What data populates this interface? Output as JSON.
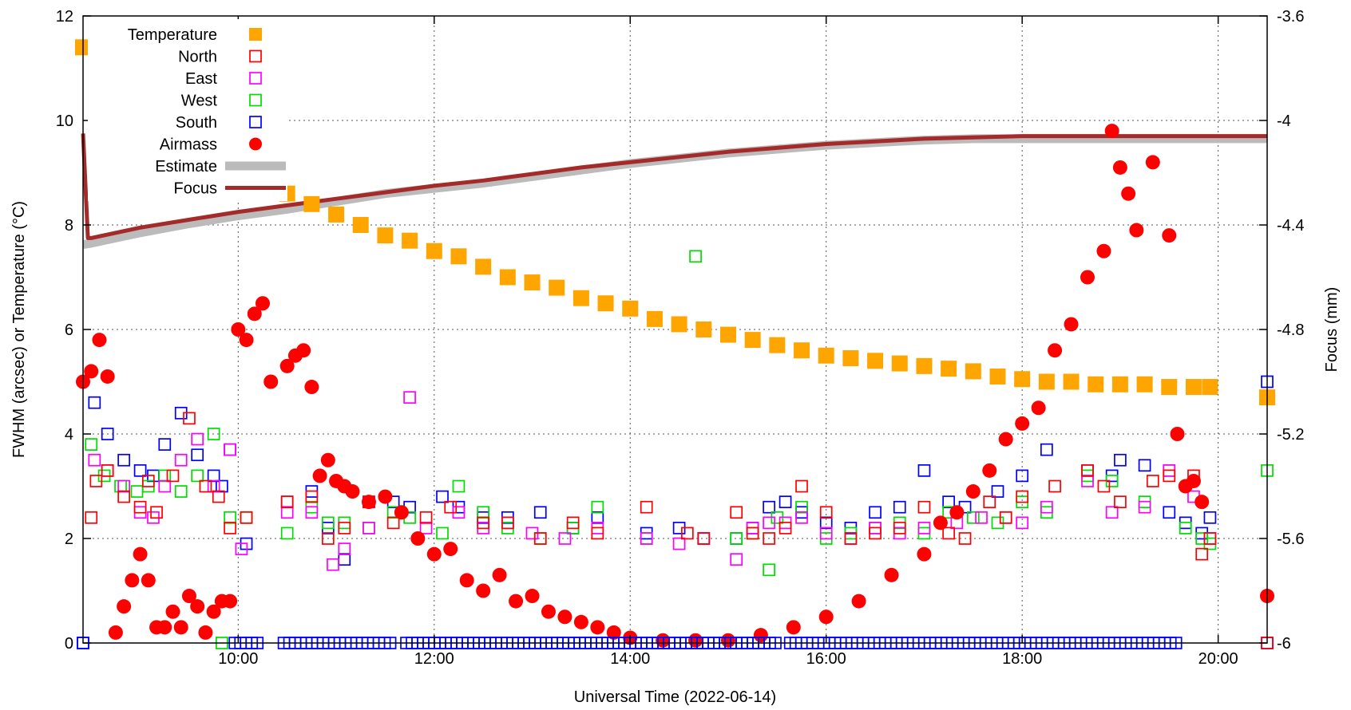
{
  "chart_data": {
    "type": "scatter",
    "xlabel": "Universal Time (2022-06-14)",
    "ylabel": "FWHM (arcsec) or Temperature (°C)",
    "y2label": "Focus (mm)",
    "xlim": [
      "08:25",
      "20:30"
    ],
    "ylim": [
      0,
      12
    ],
    "y2lim": [
      -6,
      -3.6
    ],
    "x_ticks": [
      "10:00",
      "12:00",
      "14:00",
      "16:00",
      "18:00",
      "20:00"
    ],
    "y_ticks": [
      0,
      2,
      4,
      6,
      8,
      10,
      12
    ],
    "y2_ticks": [
      -6,
      -5.6,
      -5.2,
      -4.8,
      -4.4,
      -4,
      -3.6
    ],
    "grid": true,
    "legend_position": "top-left",
    "colors": {
      "temperature": "#ffa500",
      "north": "#ff0000",
      "east": "#ff00ff",
      "west": "#00dd00",
      "south": "#0000ff",
      "airmass": "#ff0000",
      "estimate": "#bbbbbb",
      "focus": "#a52a2a"
    },
    "series": [
      {
        "name": "Temperature",
        "axis": "y",
        "marker": "filled-square",
        "x": [
          "08:25",
          "08:35",
          "08:45",
          "08:55",
          "09:05",
          "09:15",
          "09:25",
          "09:35",
          "09:45",
          "09:55",
          "10:05",
          "10:15",
          "10:30",
          "10:45",
          "11:00",
          "11:15",
          "11:30",
          "11:45",
          "12:00",
          "12:15",
          "12:30",
          "12:45",
          "13:00",
          "13:15",
          "13:30",
          "13:45",
          "14:00",
          "14:15",
          "14:30",
          "14:45",
          "15:00",
          "15:15",
          "15:30",
          "15:45",
          "16:00",
          "16:15",
          "16:30",
          "16:45",
          "17:00",
          "17:15",
          "17:30",
          "17:45",
          "18:00",
          "18:15",
          "18:30",
          "18:45",
          "19:00",
          "19:15",
          "19:30",
          "19:45",
          "19:55",
          "20:30"
        ],
        "y": [
          11.4,
          11.0,
          10.7,
          10.5,
          10.2,
          9.9,
          9.7,
          9.5,
          9.2,
          9.1,
          8.9,
          8.8,
          8.6,
          8.4,
          8.2,
          8.0,
          7.8,
          7.7,
          7.5,
          7.4,
          7.2,
          7.0,
          6.9,
          6.8,
          6.6,
          6.5,
          6.4,
          6.2,
          6.1,
          6.0,
          5.9,
          5.8,
          5.7,
          5.6,
          5.5,
          5.45,
          5.4,
          5.35,
          5.3,
          5.25,
          5.2,
          5.1,
          5.05,
          5.0,
          5.0,
          4.95,
          4.95,
          4.95,
          4.9,
          4.9,
          4.9,
          4.7
        ]
      },
      {
        "name": "North",
        "axis": "y",
        "marker": "open-square",
        "x": [
          "08:30",
          "08:33",
          "08:40",
          "08:50",
          "09:00",
          "09:05",
          "09:10",
          "09:20",
          "09:30",
          "09:40",
          "09:48",
          "09:55",
          "10:05",
          "10:30",
          "10:45",
          "10:55",
          "11:05",
          "11:20",
          "11:35",
          "11:55",
          "12:10",
          "12:30",
          "12:45",
          "13:05",
          "13:25",
          "13:40",
          "14:10",
          "14:35",
          "14:45",
          "15:05",
          "15:15",
          "15:25",
          "15:35",
          "15:45",
          "16:00",
          "16:15",
          "16:30",
          "16:45",
          "17:00",
          "17:15",
          "17:25",
          "17:40",
          "17:50",
          "18:00",
          "18:20",
          "18:40",
          "18:50",
          "19:00",
          "19:20",
          "19:30",
          "19:45",
          "19:50",
          "19:55",
          "20:30"
        ],
        "y": [
          2.4,
          3.1,
          3.3,
          2.8,
          2.6,
          3.1,
          2.5,
          3.2,
          4.3,
          3.0,
          2.8,
          2.2,
          2.4,
          2.7,
          2.8,
          2.0,
          2.2,
          2.7,
          2.3,
          2.4,
          2.6,
          2.3,
          2.3,
          2.0,
          2.3,
          2.1,
          2.6,
          2.1,
          2.0,
          2.5,
          2.1,
          2.0,
          2.2,
          3.0,
          2.5,
          2.0,
          2.1,
          2.2,
          2.6,
          2.1,
          2.0,
          2.7,
          2.4,
          2.8,
          3.0,
          3.3,
          3.0,
          2.7,
          3.1,
          3.2,
          3.2,
          1.7,
          2.0,
          0.0
        ]
      },
      {
        "name": "East",
        "axis": "y",
        "marker": "open-square",
        "x": [
          "08:32",
          "08:40",
          "08:50",
          "09:00",
          "09:08",
          "09:15",
          "09:25",
          "09:35",
          "09:45",
          "09:55",
          "10:02",
          "10:30",
          "10:45",
          "10:58",
          "11:05",
          "11:20",
          "11:45",
          "11:55",
          "12:15",
          "12:30",
          "12:45",
          "13:00",
          "13:20",
          "13:40",
          "14:10",
          "14:30",
          "14:45",
          "15:05",
          "15:15",
          "15:25",
          "15:35",
          "15:45",
          "16:00",
          "16:15",
          "16:30",
          "16:45",
          "17:00",
          "17:20",
          "17:35",
          "17:50",
          "18:00",
          "18:15",
          "18:40",
          "18:55",
          "19:15",
          "19:30",
          "19:45",
          "19:55"
        ],
        "y": [
          3.5,
          3.3,
          3.0,
          2.5,
          2.4,
          3.0,
          3.5,
          3.9,
          3.0,
          3.7,
          1.8,
          2.5,
          2.5,
          1.5,
          1.8,
          2.2,
          4.7,
          2.2,
          2.5,
          2.2,
          2.3,
          2.1,
          2.0,
          2.2,
          2.0,
          1.9,
          2.0,
          1.6,
          2.2,
          2.3,
          2.3,
          2.4,
          2.1,
          2.0,
          2.2,
          2.1,
          2.2,
          2.3,
          2.4,
          2.4,
          2.3,
          2.6,
          3.1,
          2.5,
          2.6,
          3.3,
          2.8,
          2.0
        ]
      },
      {
        "name": "West",
        "axis": "y",
        "marker": "open-square",
        "x": [
          "08:30",
          "08:38",
          "08:48",
          "08:58",
          "09:05",
          "09:15",
          "09:25",
          "09:35",
          "09:45",
          "09:50",
          "09:55",
          "10:05",
          "10:30",
          "10:45",
          "10:55",
          "11:05",
          "11:20",
          "11:35",
          "11:45",
          "12:05",
          "12:15",
          "12:30",
          "12:45",
          "13:05",
          "13:25",
          "13:40",
          "14:10",
          "14:40",
          "15:05",
          "15:15",
          "15:25",
          "15:30",
          "15:45",
          "16:00",
          "16:15",
          "16:30",
          "16:45",
          "17:00",
          "17:15",
          "17:30",
          "17:45",
          "18:00",
          "18:15",
          "18:40",
          "18:55",
          "19:15",
          "19:30",
          "19:40",
          "19:50",
          "19:55",
          "20:30"
        ],
        "y": [
          3.8,
          3.2,
          3.0,
          2.9,
          3.0,
          3.2,
          2.9,
          3.2,
          4.0,
          0.0,
          2.4,
          2.4,
          2.1,
          2.6,
          2.3,
          2.3,
          2.2,
          2.5,
          2.4,
          2.1,
          3.0,
          2.5,
          2.2,
          2.0,
          2.2,
          2.6,
          2.0,
          7.4,
          2.0,
          2.1,
          1.4,
          2.4,
          2.6,
          2.0,
          2.1,
          2.2,
          2.3,
          2.1,
          2.5,
          2.4,
          2.3,
          2.7,
          2.5,
          3.2,
          3.1,
          2.7,
          3.3,
          2.2,
          2.0,
          1.9,
          3.3
        ]
      },
      {
        "name": "South",
        "axis": "y",
        "marker": "open-square",
        "x": [
          "08:25",
          "08:32",
          "08:40",
          "08:50",
          "09:00",
          "09:08",
          "09:15",
          "09:25",
          "09:35",
          "09:45",
          "09:50",
          "09:55",
          "10:05",
          "10:30",
          "10:45",
          "10:55",
          "11:05",
          "11:20",
          "11:35",
          "11:45",
          "12:05",
          "12:15",
          "12:30",
          "12:45",
          "13:05",
          "13:25",
          "13:40",
          "14:10",
          "14:30",
          "14:45",
          "15:05",
          "15:15",
          "15:25",
          "15:35",
          "15:45",
          "16:00",
          "16:15",
          "16:30",
          "16:45",
          "17:00",
          "17:15",
          "17:25",
          "17:45",
          "18:00",
          "18:15",
          "18:40",
          "18:55",
          "19:00",
          "19:15",
          "19:30",
          "19:40",
          "19:50",
          "19:55",
          "20:30",
          "20:30"
        ],
        "y": [
          0.0,
          4.6,
          4.0,
          3.5,
          3.3,
          3.2,
          3.8,
          4.4,
          3.6,
          3.2,
          3.0,
          3.7,
          1.9,
          2.7,
          2.9,
          2.2,
          1.6,
          2.7,
          2.7,
          2.6,
          2.8,
          2.6,
          2.4,
          2.4,
          2.5,
          2.2,
          2.4,
          2.1,
          2.2,
          2.0,
          2.0,
          2.2,
          2.6,
          2.7,
          2.5,
          2.3,
          2.2,
          2.5,
          2.6,
          3.3,
          2.7,
          2.6,
          2.9,
          3.2,
          3.7,
          3.3,
          3.2,
          3.5,
          3.4,
          2.5,
          2.3,
          2.1,
          2.4,
          0.0,
          5.0
        ]
      },
      {
        "name": "Airmass",
        "axis": "y",
        "marker": "filled-circle",
        "x": [
          "08:25",
          "08:30",
          "08:35",
          "08:40",
          "08:45",
          "08:50",
          "08:55",
          "09:00",
          "09:05",
          "09:10",
          "09:15",
          "09:20",
          "09:25",
          "09:30",
          "09:35",
          "09:40",
          "09:45",
          "09:50",
          "09:55",
          "10:00",
          "10:05",
          "10:10",
          "10:15",
          "10:20",
          "10:30",
          "10:35",
          "10:40",
          "10:45",
          "10:50",
          "10:55",
          "11:00",
          "11:05",
          "11:10",
          "11:20",
          "11:30",
          "11:40",
          "11:50",
          "12:00",
          "12:10",
          "12:20",
          "12:30",
          "12:40",
          "12:50",
          "13:00",
          "13:10",
          "13:20",
          "13:30",
          "13:40",
          "13:50",
          "14:00",
          "14:20",
          "14:40",
          "15:00",
          "15:20",
          "15:40",
          "16:00",
          "16:20",
          "16:40",
          "17:00",
          "17:10",
          "17:20",
          "17:30",
          "17:40",
          "17:50",
          "18:00",
          "18:10",
          "18:20",
          "18:30",
          "18:40",
          "18:50",
          "18:55",
          "19:00",
          "19:05",
          "19:10",
          "19:20",
          "19:30",
          "19:35",
          "19:40",
          "19:45",
          "19:50",
          "20:30"
        ],
        "y": [
          5.0,
          5.2,
          5.8,
          5.1,
          0.2,
          0.7,
          1.2,
          1.7,
          1.2,
          0.3,
          0.3,
          0.6,
          0.3,
          0.9,
          0.7,
          0.2,
          0.6,
          0.8,
          0.8,
          6.0,
          5.8,
          6.3,
          6.5,
          5.0,
          5.3,
          5.5,
          5.6,
          4.9,
          3.2,
          3.5,
          3.1,
          3.0,
          2.9,
          2.7,
          2.8,
          2.5,
          2.0,
          1.7,
          1.8,
          1.2,
          1.0,
          1.3,
          0.8,
          0.9,
          0.6,
          0.5,
          0.4,
          0.3,
          0.2,
          0.1,
          0.05,
          0.05,
          0.05,
          0.15,
          0.3,
          0.5,
          0.8,
          1.3,
          1.7,
          2.3,
          2.5,
          2.9,
          3.3,
          3.9,
          4.2,
          4.5,
          5.6,
          6.1,
          7.0,
          7.5,
          9.8,
          9.1,
          8.6,
          7.9,
          9.2,
          7.8,
          4.0,
          3.0,
          3.1,
          2.7,
          0.9
        ]
      },
      {
        "name": "Estimate",
        "axis": "y2",
        "marker": "thick-line",
        "x": [
          "08:25",
          "08:30",
          "09:00",
          "09:30",
          "10:00",
          "10:30",
          "11:00",
          "11:30",
          "12:00",
          "12:30",
          "13:00",
          "13:30",
          "14:00",
          "14:30",
          "15:00",
          "15:30",
          "16:00",
          "16:30",
          "17:00",
          "17:30",
          "18:00",
          "18:30",
          "19:00",
          "19:30",
          "20:00",
          "20:30"
        ],
        "y": [
          -4.475,
          -4.47,
          -4.43,
          -4.395,
          -4.365,
          -4.34,
          -4.31,
          -4.28,
          -4.26,
          -4.24,
          -4.215,
          -4.19,
          -4.165,
          -4.145,
          -4.125,
          -4.11,
          -4.095,
          -4.085,
          -4.075,
          -4.07,
          -4.07,
          -4.07,
          -4.07,
          -4.07,
          -4.07,
          -4.07
        ]
      },
      {
        "name": "Focus",
        "axis": "y2",
        "marker": "line",
        "x": [
          "08:25",
          "08:25",
          "08:28",
          "08:30",
          "09:00",
          "09:30",
          "10:00",
          "10:30",
          "11:00",
          "11:30",
          "12:00",
          "12:30",
          "13:00",
          "13:30",
          "14:00",
          "14:30",
          "15:00",
          "15:30",
          "16:00",
          "16:30",
          "17:00",
          "17:30",
          "18:00",
          "18:30",
          "19:00",
          "19:30",
          "20:00",
          "20:30"
        ],
        "y": [
          -4.05,
          -4.05,
          -4.45,
          -4.45,
          -4.41,
          -4.38,
          -4.35,
          -4.325,
          -4.3,
          -4.275,
          -4.25,
          -4.23,
          -4.205,
          -4.18,
          -4.16,
          -4.14,
          -4.12,
          -4.105,
          -4.09,
          -4.08,
          -4.07,
          -4.065,
          -4.06,
          -4.06,
          -4.06,
          -4.06,
          -4.06,
          -4.06
        ]
      }
    ],
    "south_zero_band": [
      [
        "08:25",
        "08:25"
      ],
      [
        "09:58",
        "10:15"
      ],
      [
        "10:28",
        "11:35"
      ],
      [
        "11:43",
        "15:30"
      ],
      [
        "15:38",
        "19:35"
      ]
    ]
  }
}
